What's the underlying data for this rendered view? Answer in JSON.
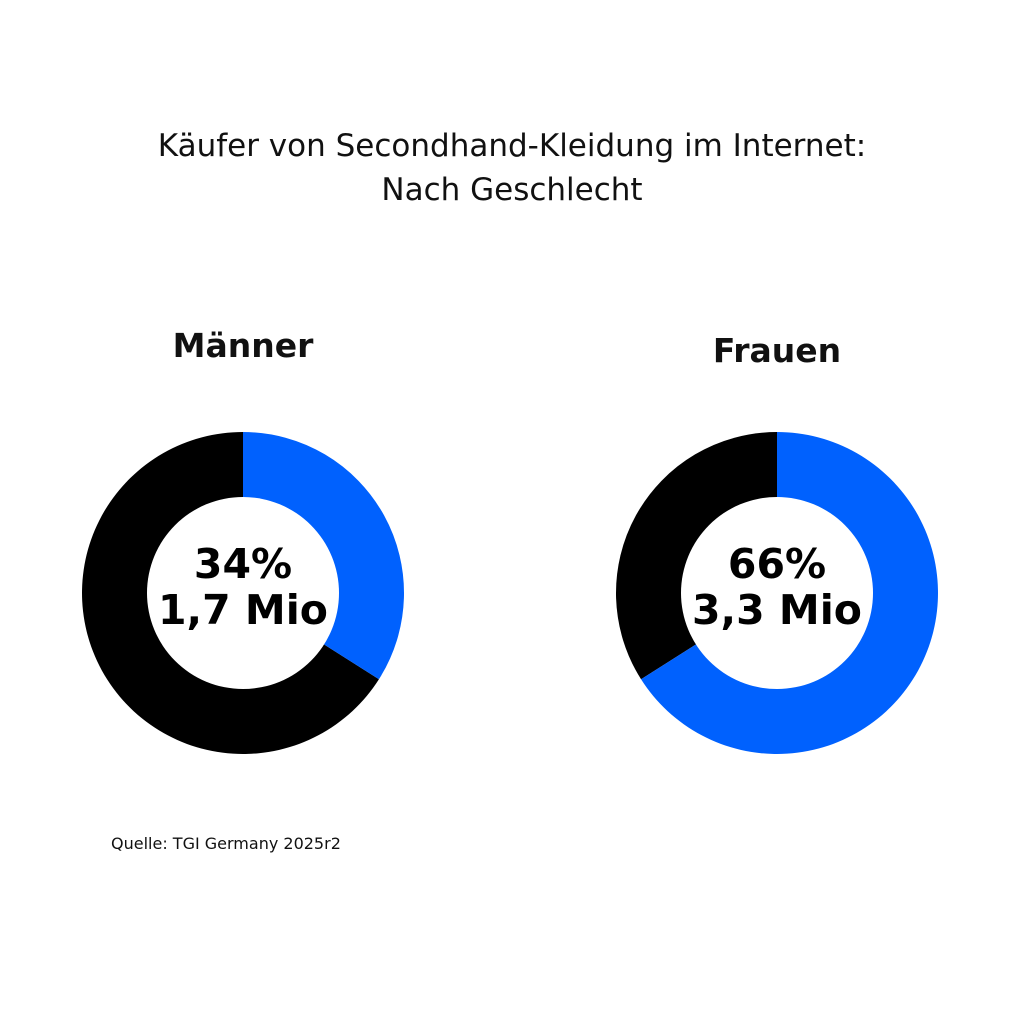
{
  "chart_data": {
    "type": "pie",
    "title_line1": "Käufer von Secondhand-Kleidung im Internet:",
    "title_line2": "Nach Geschlecht",
    "source": "Quelle: TGI Germany 2025r2",
    "colors": {
      "highlight": "#0061FE",
      "remainder": "#000000",
      "hole": "#ffffff"
    },
    "charts": [
      {
        "label": "Männer",
        "percent_text": "34%",
        "count_text": "1,7 Mio",
        "value": 34
      },
      {
        "label": "Frauen",
        "percent_text": "66%",
        "count_text": "3,3 Mio",
        "value": 66
      }
    ]
  }
}
